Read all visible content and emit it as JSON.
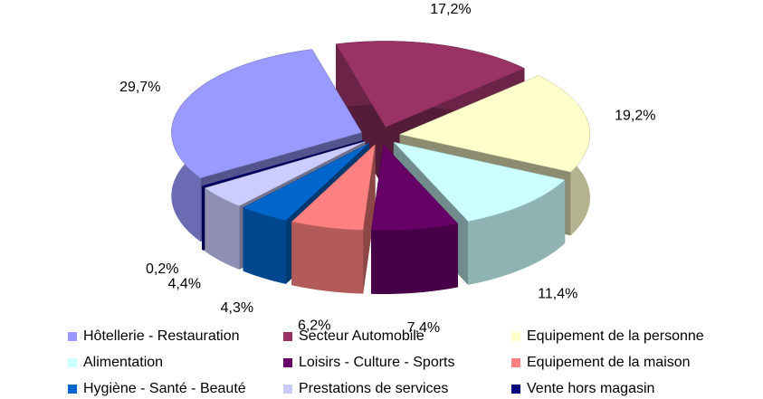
{
  "chart_data": {
    "type": "pie",
    "categories": [
      "Hôtellerie - Restauration",
      "Secteur Automobile",
      "Equipement de la personne",
      "Alimentation",
      "Loisirs - Culture - Sports",
      "Equipement de la maison",
      "Hygiène - Santé - Beauté",
      "Prestations de services",
      "Vente hors magasin"
    ],
    "values": [
      29.7,
      17.2,
      19.2,
      11.4,
      7.4,
      6.2,
      4.3,
      4.4,
      0.2
    ],
    "value_labels": [
      "29,7%",
      "17,2%",
      "19,2%",
      "11,4%",
      "7,4%",
      "6,2%",
      "4,3%",
      "4,4%",
      "0,2%"
    ],
    "colors": [
      "#9999ff",
      "#993366",
      "#ffffcc",
      "#ccffff",
      "#660066",
      "#ff8080",
      "#0066cc",
      "#ccccff",
      "#000080"
    ],
    "legend": "bottom"
  }
}
